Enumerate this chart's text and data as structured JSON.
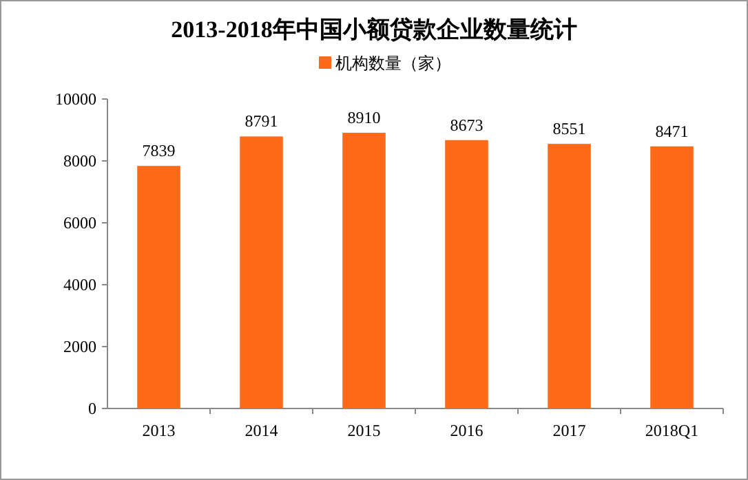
{
  "chart_data": {
    "type": "bar",
    "title": "2013-2018年中国小额贷款企业数量统计",
    "categories": [
      "2013",
      "2014",
      "2015",
      "2016",
      "2017",
      "2018Q1"
    ],
    "series": [
      {
        "name": "机构数量（家）",
        "color": "#ff6a1a",
        "values": [
          7839,
          8791,
          8910,
          8673,
          8551,
          8471
        ]
      }
    ],
    "ylim": [
      0,
      10000
    ],
    "yticks": [
      0,
      2000,
      4000,
      6000,
      8000,
      10000
    ],
    "data_labels": true,
    "legend": "top",
    "grid": false
  }
}
